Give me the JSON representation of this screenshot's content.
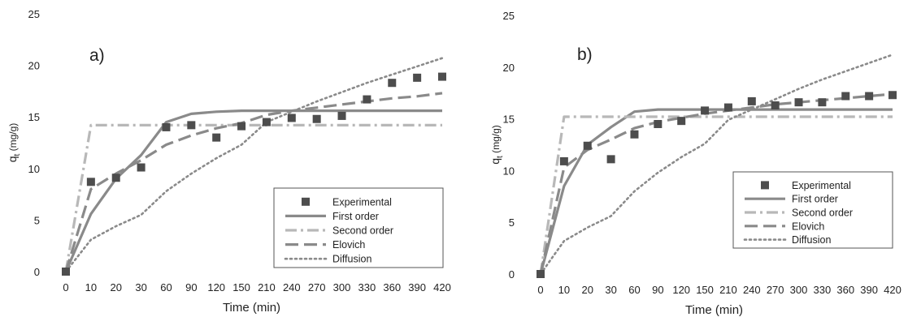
{
  "chart_data": [
    {
      "type": "line",
      "panel_label": "a)",
      "xlabel": "Time (min)",
      "ylabel": "q",
      "ylabel_sub": "t",
      "ylabel_unit": " (mg/g)",
      "categories": [
        "0",
        "10",
        "20",
        "30",
        "60",
        "90",
        "120",
        "150",
        "210",
        "240",
        "270",
        "300",
        "330",
        "360",
        "390",
        "420"
      ],
      "ylim": [
        0,
        25
      ],
      "yticks": [
        0,
        5,
        10,
        15,
        20,
        25
      ],
      "grid": false,
      "legend_position": "bottom-right",
      "series": [
        {
          "name": "Experimental",
          "style": "marker",
          "values": [
            0,
            8.7,
            9.1,
            10.1,
            14.0,
            14.2,
            13.0,
            14.1,
            14.5,
            14.9,
            14.8,
            15.1,
            16.7,
            18.3,
            18.8,
            18.9
          ]
        },
        {
          "name": "First order",
          "style": "solid",
          "values": [
            0,
            5.6,
            9.0,
            11.3,
            14.5,
            15.3,
            15.5,
            15.6,
            15.6,
            15.6,
            15.6,
            15.6,
            15.6,
            15.6,
            15.6,
            15.6
          ]
        },
        {
          "name": "Second order",
          "style": "dashdot",
          "values": [
            0,
            14.2,
            14.2,
            14.2,
            14.2,
            14.2,
            14.2,
            14.2,
            14.2,
            14.2,
            14.2,
            14.2,
            14.2,
            14.2,
            14.2,
            14.2
          ]
        },
        {
          "name": "Elovich",
          "style": "longdash",
          "values": [
            0,
            8.0,
            9.5,
            10.8,
            12.3,
            13.2,
            13.9,
            14.4,
            15.2,
            15.6,
            15.9,
            16.2,
            16.5,
            16.8,
            17.0,
            17.3
          ]
        },
        {
          "name": "Diffusion",
          "style": "dotted",
          "values": [
            0,
            3.1,
            4.4,
            5.5,
            7.8,
            9.5,
            11.0,
            12.3,
            14.5,
            15.5,
            16.5,
            17.4,
            18.3,
            19.1,
            19.9,
            20.7
          ]
        }
      ]
    },
    {
      "type": "line",
      "panel_label": "b)",
      "xlabel": "Time (min)",
      "ylabel": "q",
      "ylabel_sub": "t",
      "ylabel_unit": " (mg/g)",
      "categories": [
        "0",
        "10",
        "20",
        "30",
        "60",
        "90",
        "120",
        "150",
        "210",
        "240",
        "270",
        "300",
        "330",
        "360",
        "390",
        "420"
      ],
      "ylim": [
        0,
        25
      ],
      "yticks": [
        0,
        5,
        10,
        15,
        20,
        25
      ],
      "grid": false,
      "legend_position": "bottom-right",
      "series": [
        {
          "name": "Experimental",
          "style": "marker",
          "values": [
            0,
            10.9,
            12.4,
            11.1,
            13.5,
            14.5,
            14.8,
            15.8,
            16.1,
            16.7,
            16.3,
            16.6,
            16.6,
            17.2,
            17.2,
            17.3
          ]
        },
        {
          "name": "First order",
          "style": "solid",
          "values": [
            0,
            8.5,
            12.5,
            14.2,
            15.7,
            15.9,
            15.9,
            15.9,
            15.9,
            15.9,
            15.9,
            15.9,
            15.9,
            15.9,
            15.9,
            15.9
          ]
        },
        {
          "name": "Second order",
          "style": "dashdot",
          "values": [
            0,
            15.2,
            15.2,
            15.2,
            15.2,
            15.2,
            15.2,
            15.2,
            15.2,
            15.2,
            15.2,
            15.2,
            15.2,
            15.2,
            15.2,
            15.2
          ]
        },
        {
          "name": "Elovich",
          "style": "longdash",
          "values": [
            0,
            10.3,
            12.0,
            13.0,
            14.1,
            14.7,
            15.1,
            15.5,
            15.8,
            16.1,
            16.4,
            16.6,
            16.8,
            17.0,
            17.2,
            17.4
          ]
        },
        {
          "name": "Diffusion",
          "style": "dotted",
          "values": [
            0,
            3.2,
            4.5,
            5.6,
            8.0,
            9.8,
            11.3,
            12.6,
            14.9,
            15.9,
            16.9,
            17.9,
            18.8,
            19.6,
            20.4,
            21.2
          ]
        }
      ]
    }
  ]
}
